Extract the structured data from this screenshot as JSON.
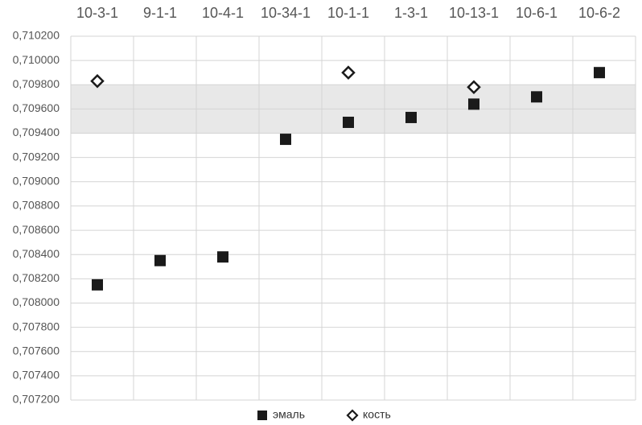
{
  "chart_data": {
    "type": "scatter",
    "categories": [
      "10-3-1",
      "9-1-1",
      "10-4-1",
      "10-34-1",
      "10-1-1",
      "1-3-1",
      "10-13-1",
      "10-6-1",
      "10-6-2"
    ],
    "series": [
      {
        "name": "эмаль",
        "color": "#1a1a1a",
        "marker": "square",
        "values": [
          0.70815,
          0.70835,
          0.70838,
          0.70935,
          0.70949,
          0.70953,
          0.70964,
          0.7097,
          0.7099
        ]
      },
      {
        "name": "кость",
        "color": "#1a1a1a",
        "marker": "diamond",
        "values": [
          0.70983,
          null,
          null,
          null,
          0.7099,
          null,
          0.70978,
          null,
          null
        ]
      }
    ],
    "band": [
      0.7094,
      0.7098
    ],
    "band_color": "#e8e8e8",
    "ylim": [
      0.7072,
      0.7102
    ],
    "yticks": [
      {
        "value": 0.7072,
        "label": "0,707200"
      },
      {
        "value": 0.7074,
        "label": "0,707400"
      },
      {
        "value": 0.7076,
        "label": "0,707600"
      },
      {
        "value": 0.7078,
        "label": "0,707800"
      },
      {
        "value": 0.708,
        "label": "0,708000"
      },
      {
        "value": 0.7082,
        "label": "0,708200"
      },
      {
        "value": 0.7084,
        "label": "0,708400"
      },
      {
        "value": 0.7086,
        "label": "0,708600"
      },
      {
        "value": 0.7088,
        "label": "0,708800"
      },
      {
        "value": 0.709,
        "label": "0,709000"
      },
      {
        "value": 0.7092,
        "label": "0,709200"
      },
      {
        "value": 0.7094,
        "label": "0,709400"
      },
      {
        "value": 0.7096,
        "label": "0,709600"
      },
      {
        "value": 0.7098,
        "label": "0,709800"
      },
      {
        "value": 0.71,
        "label": "0,710000"
      },
      {
        "value": 0.7102,
        "label": "0,710200"
      }
    ],
    "grid": true,
    "legend": "bottom"
  }
}
